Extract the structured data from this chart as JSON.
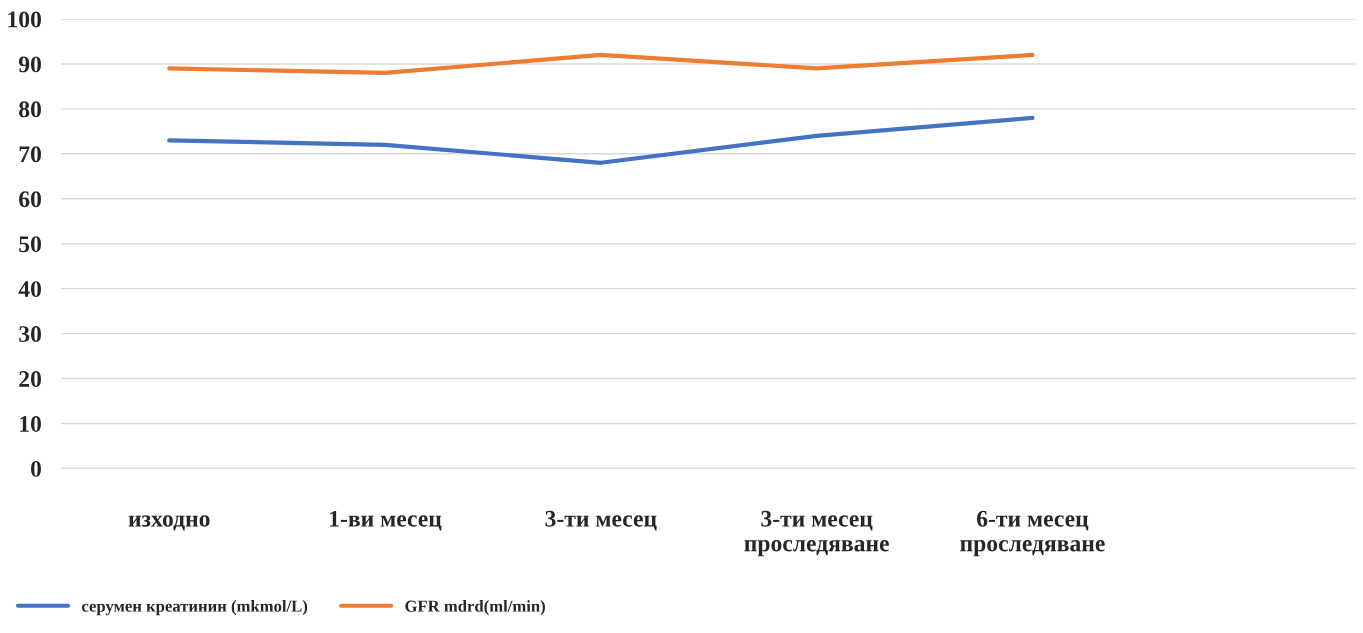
{
  "chart_data": {
    "type": "line",
    "categories": [
      "изходно",
      "1-ви месец",
      "3-ти месец",
      "3-ти месец\nпроследяване",
      "6-ти месец\nпроследяване",
      null
    ],
    "series": [
      {
        "name": "серумен креатинин (mkmol/L)",
        "color": "#4472c4",
        "values": [
          73,
          72,
          68,
          74,
          78,
          null
        ]
      },
      {
        "name": "GFR mdrd(ml/min)",
        "color": "#ed7d31",
        "values": [
          89,
          88,
          92,
          89,
          92,
          null
        ]
      }
    ],
    "ylim": [
      0,
      100
    ],
    "yticks": [
      0,
      10,
      20,
      30,
      40,
      50,
      60,
      70,
      80,
      90,
      100
    ],
    "grid": "y",
    "legend": "bottom left",
    "marker": "none"
  }
}
